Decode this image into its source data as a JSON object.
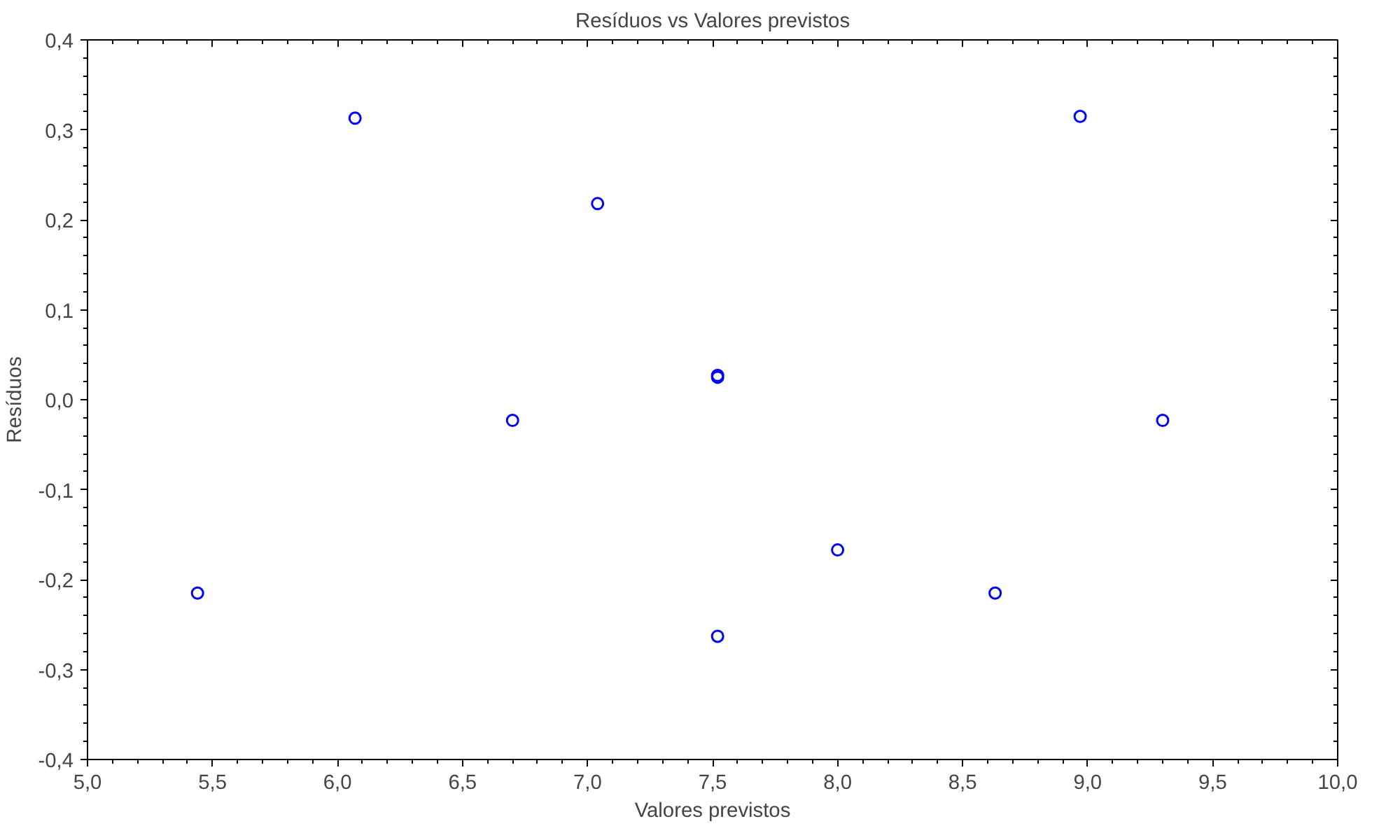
{
  "chart_data": {
    "type": "scatter",
    "title": "Resíduos vs Valores previstos",
    "xlabel": "Valores previstos",
    "ylabel": "Resíduos",
    "x": [
      5.44,
      6.07,
      6.7,
      7.04,
      7.52,
      7.52,
      7.52,
      8.0,
      8.63,
      8.97,
      9.3
    ],
    "series": [
      {
        "color": "#0000ff",
        "values": [
          -0.215,
          0.313,
          -0.023,
          0.218,
          0.027,
          0.025,
          -0.263,
          -0.167,
          -0.215,
          0.315,
          -0.023
        ]
      }
    ],
    "marker": "circle",
    "grid": false,
    "xlim": [
      5.0,
      10.0
    ],
    "ylim": [
      -0.4,
      0.4
    ],
    "xticks": [
      {
        "value": 5.0,
        "label": "5,0"
      },
      {
        "value": 5.5,
        "label": "5,5"
      },
      {
        "value": 6.0,
        "label": "6,0"
      },
      {
        "value": 6.5,
        "label": "6,5"
      },
      {
        "value": 7.0,
        "label": "7,0"
      },
      {
        "value": 7.5,
        "label": "7,5"
      },
      {
        "value": 8.0,
        "label": "8,0"
      },
      {
        "value": 8.5,
        "label": "8,5"
      },
      {
        "value": 9.0,
        "label": "9,0"
      },
      {
        "value": 9.5,
        "label": "9,5"
      },
      {
        "value": 10.0,
        "label": "10,0"
      }
    ],
    "yticks": [
      {
        "value": -0.4,
        "label": "-0,4"
      },
      {
        "value": -0.3,
        "label": "-0,3"
      },
      {
        "value": -0.2,
        "label": "-0,2"
      },
      {
        "value": -0.1,
        "label": "-0,1"
      },
      {
        "value": 0.0,
        "label": "0,0"
      },
      {
        "value": 0.1,
        "label": "0,1"
      },
      {
        "value": 0.2,
        "label": "0,2"
      },
      {
        "value": 0.3,
        "label": "0,3"
      },
      {
        "value": 0.4,
        "label": "0,4"
      }
    ]
  }
}
